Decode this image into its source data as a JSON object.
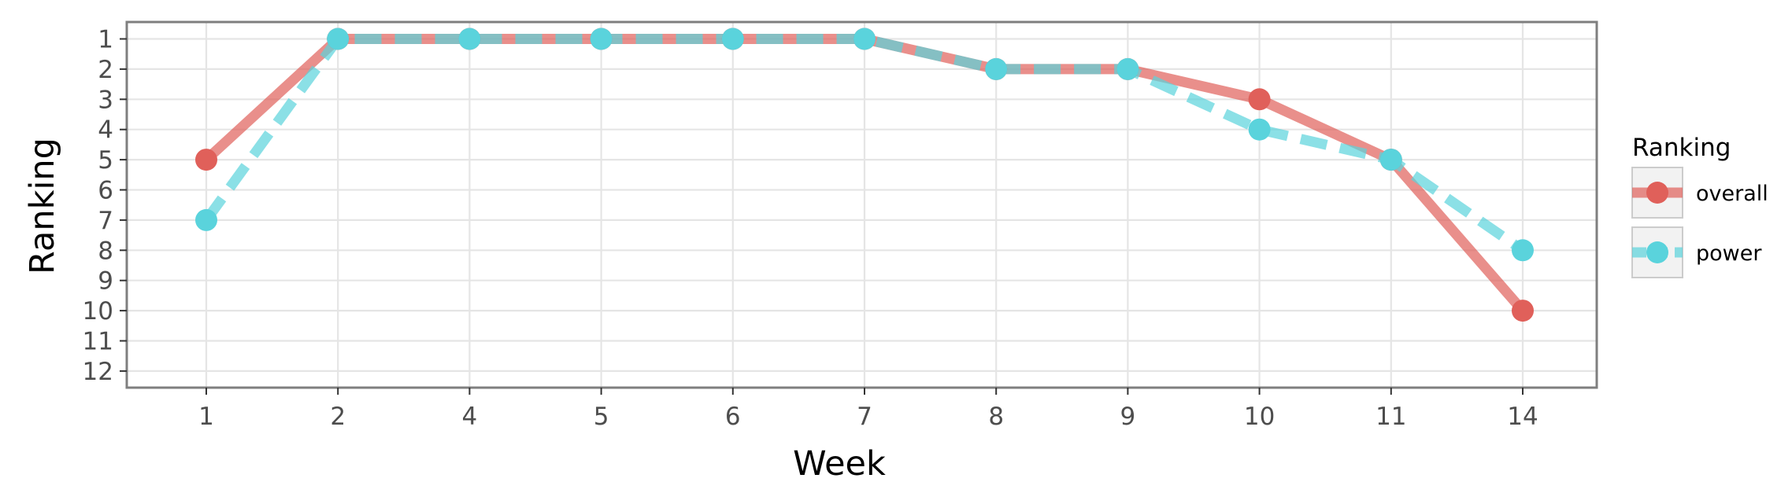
{
  "chart_data": {
    "type": "line",
    "xlabel": "Week",
    "ylabel": "Ranking",
    "categories": [
      "1",
      "2",
      "4",
      "5",
      "6",
      "7",
      "8",
      "9",
      "10",
      "11",
      "14"
    ],
    "y_ticks": [
      "1",
      "2",
      "3",
      "4",
      "5",
      "6",
      "7",
      "8",
      "9",
      "10",
      "11",
      "12"
    ],
    "ylim": [
      1,
      12
    ],
    "y_reversed": true,
    "grid": true,
    "legend": {
      "title": "Ranking",
      "placement": "right"
    },
    "series": [
      {
        "name": "overall",
        "values": [
          5,
          1,
          1,
          1,
          1,
          1,
          2,
          2,
          3,
          5,
          10
        ],
        "color": "#e0605a",
        "line_style": "solid"
      },
      {
        "name": "power",
        "values": [
          7,
          1,
          1,
          1,
          1,
          1,
          2,
          2,
          4,
          5,
          8
        ],
        "color": "#5ad3dc",
        "line_style": "dashed"
      }
    ]
  }
}
